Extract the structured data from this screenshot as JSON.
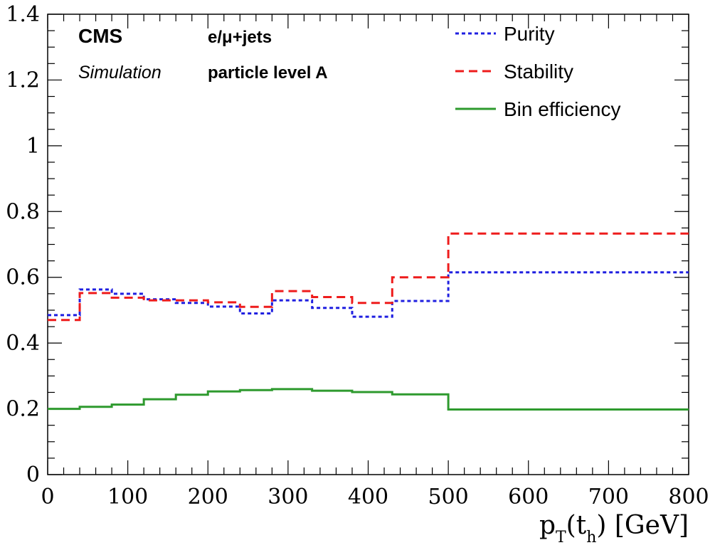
{
  "chart_data": {
    "type": "line",
    "style": "step-histogram",
    "x_edges": [
      0,
      40,
      80,
      120,
      160,
      200,
      240,
      280,
      330,
      380,
      430,
      500,
      800
    ],
    "series": [
      {
        "name": "Purity",
        "color": "#1f1fe0",
        "dash": "dotted",
        "values": [
          0.485,
          0.563,
          0.55,
          0.533,
          0.522,
          0.511,
          0.49,
          0.53,
          0.507,
          0.48,
          0.528,
          0.615
        ]
      },
      {
        "name": "Stability",
        "color": "#ee1c1c",
        "dash": "dashed",
        "values": [
          0.47,
          0.552,
          0.538,
          0.53,
          0.53,
          0.524,
          0.51,
          0.558,
          0.54,
          0.522,
          0.6,
          0.733
        ]
      },
      {
        "name": "Bin efficiency",
        "color": "#2e9a2e",
        "dash": "solid",
        "values": [
          0.2,
          0.206,
          0.213,
          0.229,
          0.243,
          0.253,
          0.257,
          0.26,
          0.255,
          0.251,
          0.244,
          0.198
        ]
      }
    ],
    "xlim": [
      0,
      800
    ],
    "ylim": [
      0,
      1.4
    ],
    "x_ticks": [
      0,
      100,
      200,
      300,
      400,
      500,
      600,
      700,
      800
    ],
    "x_tick_labels": [
      "0",
      "100",
      "200",
      "300",
      "400",
      "500",
      "600",
      "700",
      "800"
    ],
    "y_ticks": [
      0,
      0.2,
      0.4,
      0.6,
      0.8,
      1,
      1.2,
      1.4
    ],
    "y_tick_labels": [
      "0",
      "0.2",
      "0.4",
      "0.6",
      "0.8",
      "1",
      "1.2",
      "1.4"
    ],
    "xlabel": {
      "p": "p",
      "sub_T": "T",
      "open": "(t",
      "sub_h": "h",
      "close": ") [GeV]"
    },
    "ylabel": "",
    "annotations": {
      "cms": "CMS",
      "simulation": "Simulation",
      "channel": "e/μ+jets",
      "level": "particle level A"
    },
    "legend_position": "top-right",
    "grid": false
  }
}
